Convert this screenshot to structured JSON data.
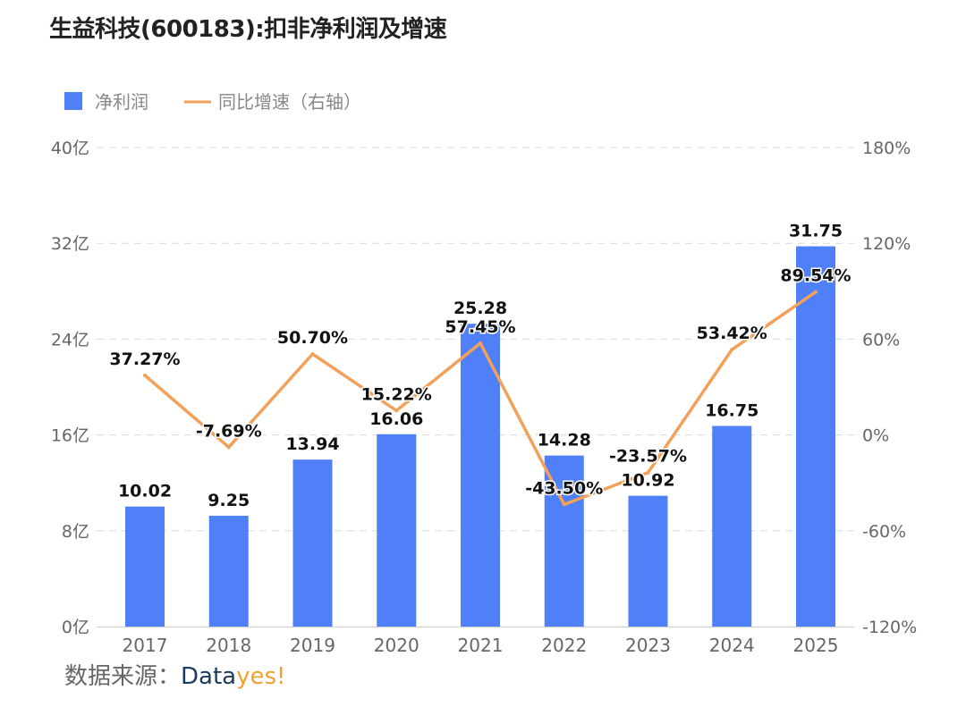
{
  "title": "生益科技(600183):扣非净利润及增速",
  "source": {
    "label": "数据来源：",
    "brand_part1": "Data",
    "brand_part2": "yes!"
  },
  "chart_data": {
    "type": "bar",
    "categories": [
      "2017",
      "2018",
      "2019",
      "2020",
      "2021",
      "2022",
      "2023",
      "2024",
      "2025"
    ],
    "series": [
      {
        "name": "净利润",
        "type": "bar",
        "axis": "left",
        "color": "#4f80f7",
        "values": [
          10.02,
          9.25,
          13.94,
          16.06,
          25.28,
          14.28,
          10.92,
          16.75,
          31.75
        ],
        "labels": [
          "10.02",
          "9.25",
          "13.94",
          "16.06",
          "25.28",
          "14.28",
          "10.92",
          "16.75",
          "31.75"
        ]
      },
      {
        "name": "同比增速（右轴）",
        "type": "line",
        "axis": "right",
        "color": "#f2a05a",
        "values": [
          37.27,
          -7.69,
          50.7,
          15.22,
          57.45,
          -43.5,
          -23.57,
          53.42,
          89.54
        ],
        "labels": [
          "37.27%",
          "-7.69%",
          "50.70%",
          "15.22%",
          "57.45%",
          "-43.50%",
          "-23.57%",
          "53.42%",
          "89.54%"
        ]
      }
    ],
    "y_left": {
      "min": 0,
      "max": 40,
      "ticks": [
        0,
        8,
        16,
        24,
        32,
        40
      ],
      "tick_labels": [
        "0亿",
        "8亿",
        "16亿",
        "24亿",
        "32亿",
        "40亿"
      ]
    },
    "y_right": {
      "min": -120,
      "max": 180,
      "ticks": [
        -120,
        -60,
        0,
        60,
        120,
        180
      ],
      "tick_labels": [
        "-120%",
        "-60%",
        "0%",
        "60%",
        "120%",
        "180%"
      ]
    },
    "grid": true,
    "legend_position": "top-left"
  },
  "colors": {
    "grid": "#d9d9d9",
    "axis_text": "#666666",
    "label_text": "#111111",
    "legend_text": "#888888"
  }
}
